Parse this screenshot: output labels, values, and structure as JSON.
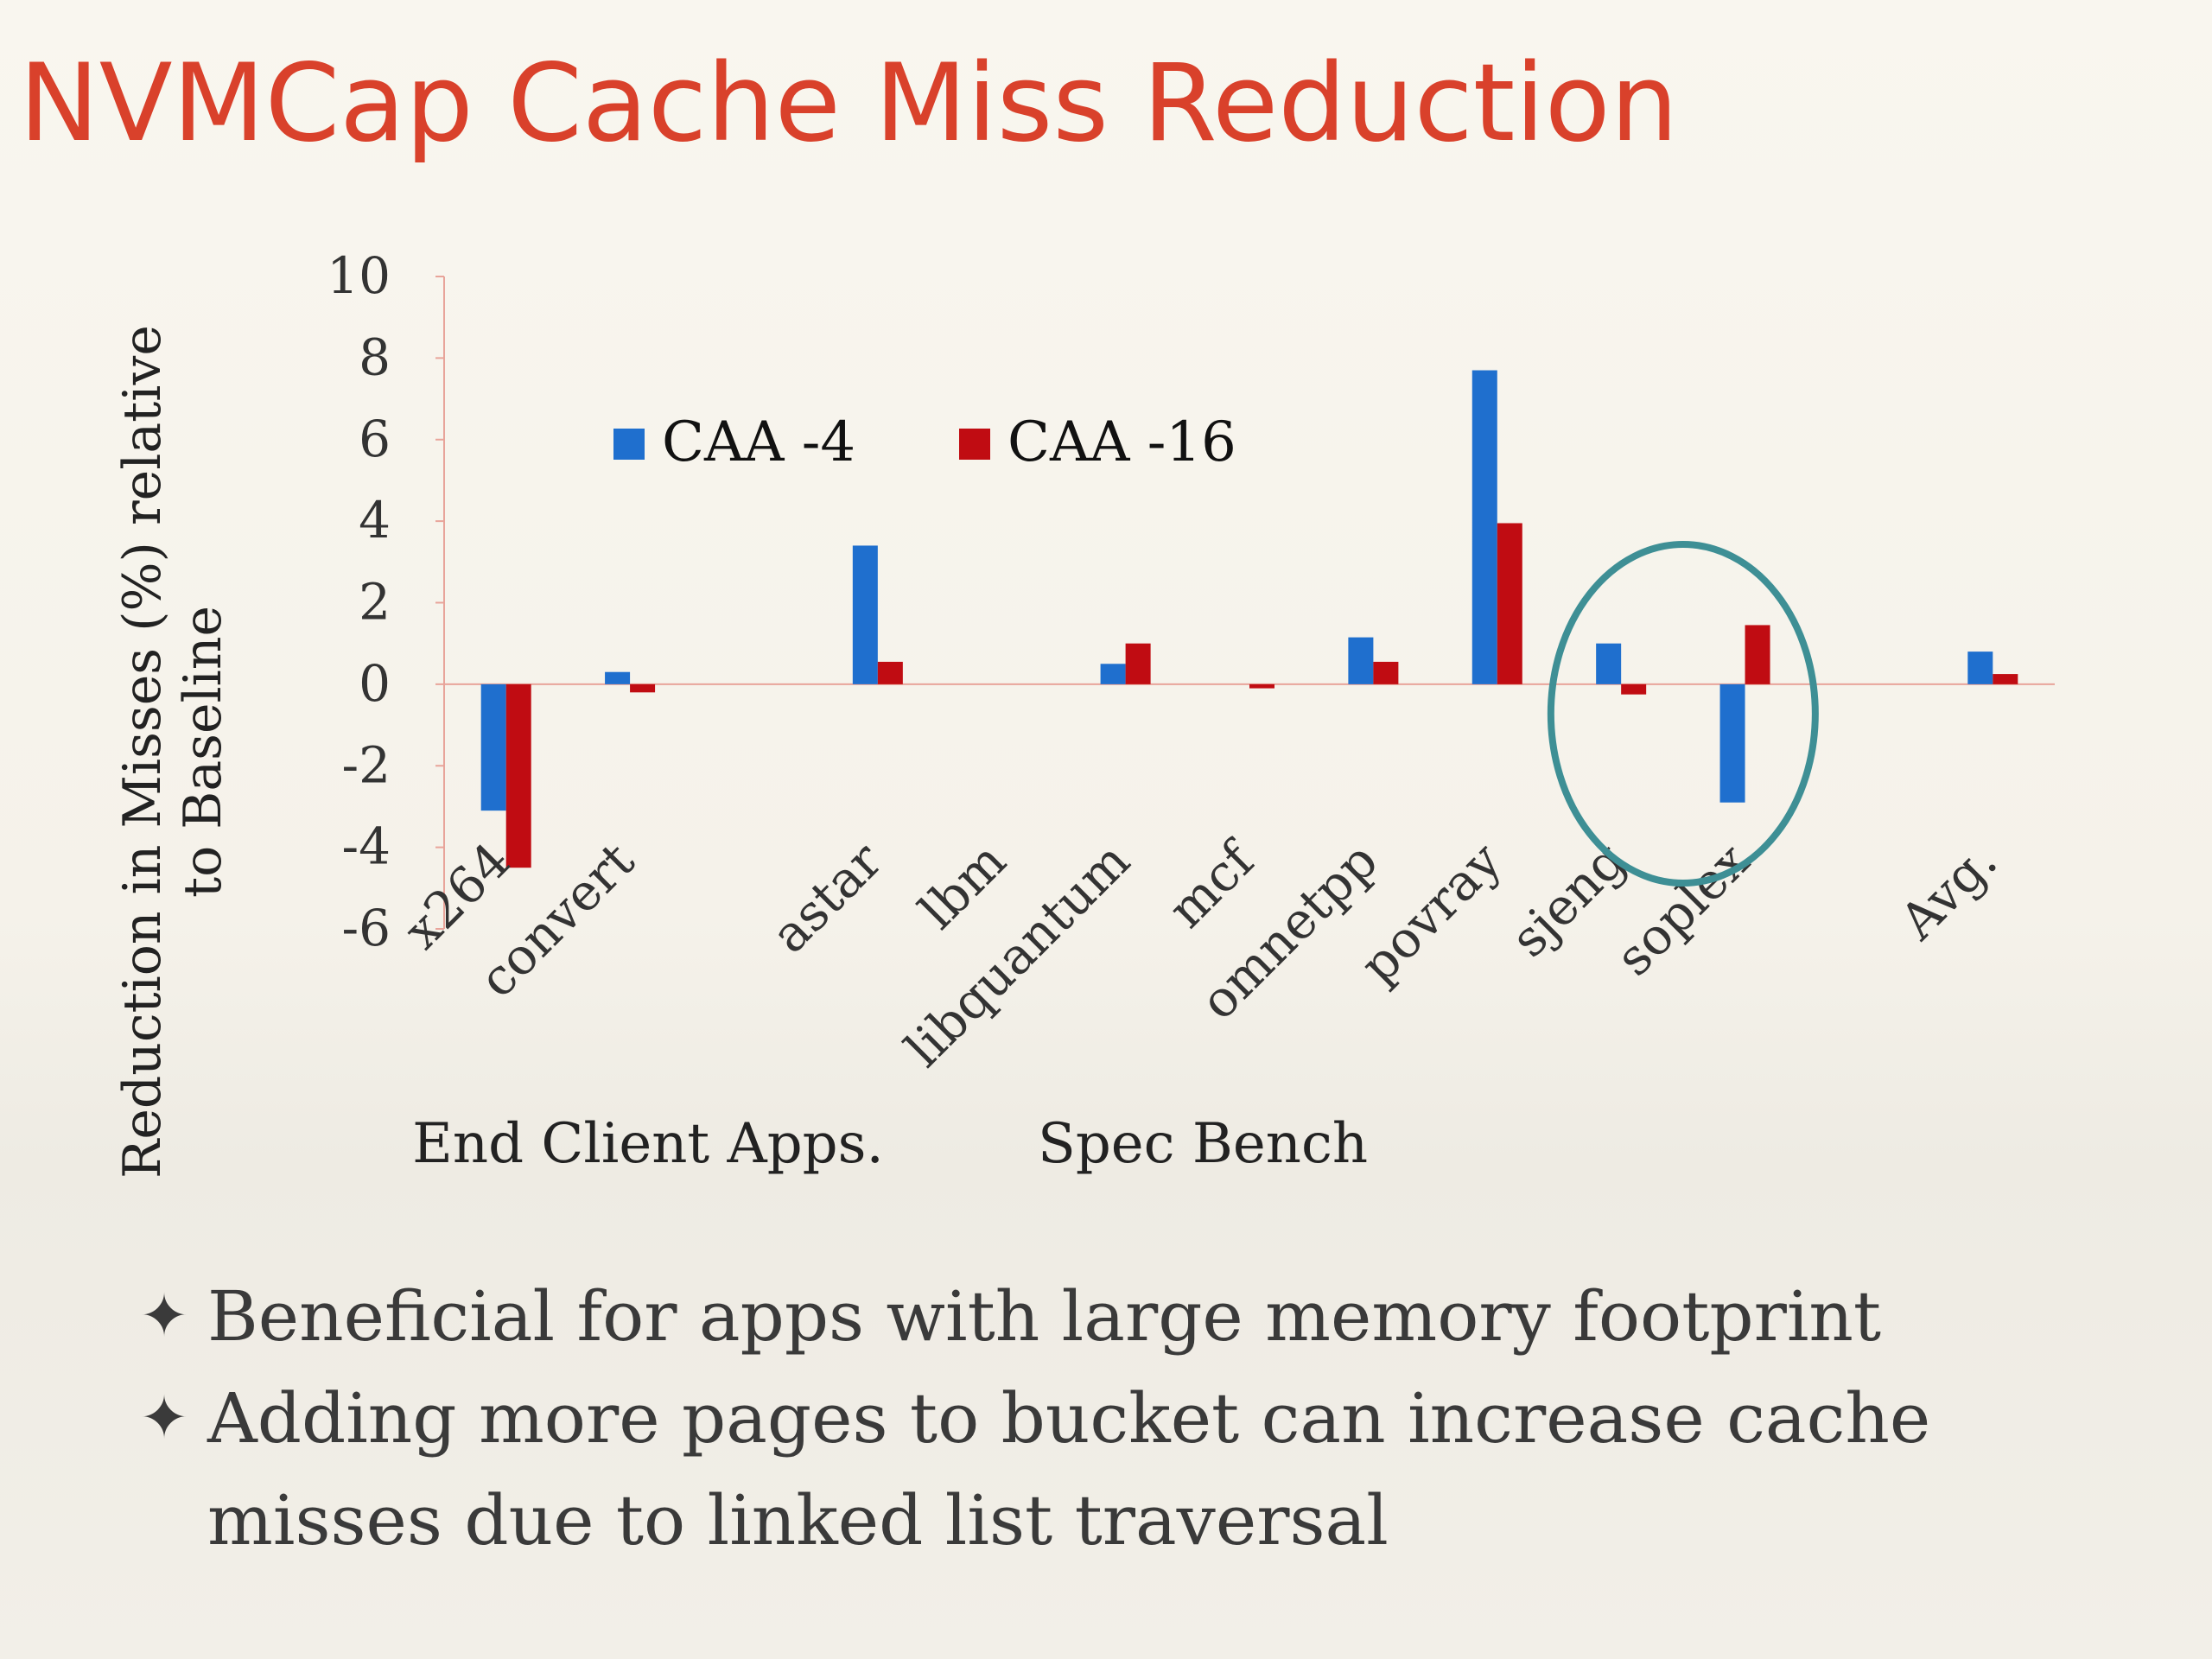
{
  "title": "NVMCap Cache Miss Reduction",
  "chart_data": {
    "type": "bar",
    "categories": [
      "x264",
      "convert",
      "",
      "astar",
      "lbm",
      "libquantum",
      "mcf",
      "omnetpp",
      "povray",
      "sjeng",
      "soplex",
      "",
      "Avg."
    ],
    "series": [
      {
        "name": "CAA -4",
        "color": "#1f6fce",
        "values": [
          -3.1,
          0.3,
          0,
          3.4,
          0,
          0.5,
          0,
          1.15,
          7.7,
          1.0,
          -2.9,
          0,
          0.8
        ]
      },
      {
        "name": "CAA -16",
        "color": "#c00c12",
        "values": [
          -4.5,
          -0.2,
          0,
          0.55,
          0,
          1.0,
          -0.1,
          0.55,
          3.95,
          -0.25,
          1.45,
          0,
          0.25
        ]
      }
    ],
    "ylabel": "Reduction in Misses (%) relative to Baseline",
    "ylabel_lines": [
      "Reduction in Misses (%) relative",
      "to Baseline"
    ],
    "ylim": [
      -6,
      10
    ],
    "yticks": [
      "10",
      "8",
      "6",
      "4",
      "2",
      "0",
      "-2",
      "-4",
      "-6"
    ],
    "group_labels": [
      "End Client Apps.",
      "Spec Bench"
    ],
    "legend_position": "top-left",
    "highlight": {
      "shape": "ellipse",
      "categories": [
        "sjeng",
        "soplex"
      ],
      "color": "#3e8f95"
    },
    "axis_color": "#e8a49a",
    "tick_color": "#333333"
  },
  "bullets": {
    "icon": "four-pointed-star-icon",
    "items": [
      {
        "glyph": "✦",
        "text": "Beneficial for apps with large memory footprint"
      },
      {
        "glyph": "✦",
        "text": "Adding more pages to bucket can increase cache misses due to linked list traversal"
      }
    ]
  }
}
